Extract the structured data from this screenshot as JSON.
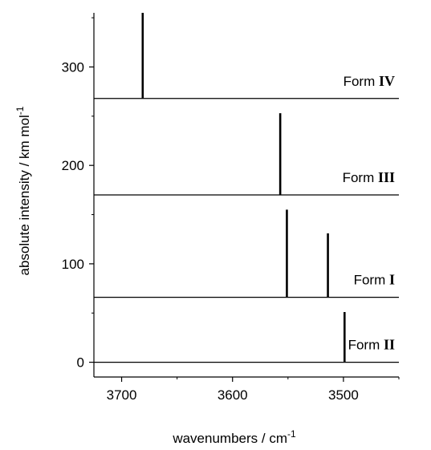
{
  "chart_data": {
    "type": "stick-spectrum",
    "xlabel": "wavenumbers / cm",
    "xlabel_superscript": "-1",
    "ylabel": "absolute intensity / km mol",
    "ylabel_superscript": "-1",
    "xlim": [
      3725,
      3450
    ],
    "ylim": [
      -15,
      355
    ],
    "x_ticks": [
      {
        "value": 3700,
        "label": "3700"
      },
      {
        "value": 3600,
        "label": "3600"
      },
      {
        "value": 3500,
        "label": "3500"
      }
    ],
    "y_ticks": [
      {
        "value": 0,
        "label": "0"
      },
      {
        "value": 100,
        "label": "100"
      },
      {
        "value": 200,
        "label": "200"
      },
      {
        "value": 300,
        "label": "300"
      }
    ],
    "series": [
      {
        "form_word": "Form",
        "form_numeral": "II",
        "baseline": 0,
        "peaks": [
          {
            "x": 3499,
            "y": 51
          }
        ]
      },
      {
        "form_word": "Form",
        "form_numeral": "I",
        "baseline": 66,
        "peaks": [
          {
            "x": 3551,
            "y": 155
          },
          {
            "x": 3514,
            "y": 131
          }
        ]
      },
      {
        "form_word": "Form",
        "form_numeral": "III",
        "baseline": 170,
        "peaks": [
          {
            "x": 3557,
            "y": 253
          }
        ]
      },
      {
        "form_word": "Form",
        "form_numeral": "IV",
        "baseline": 268,
        "peaks": [
          {
            "x": 3681,
            "y": 355
          }
        ]
      }
    ]
  }
}
